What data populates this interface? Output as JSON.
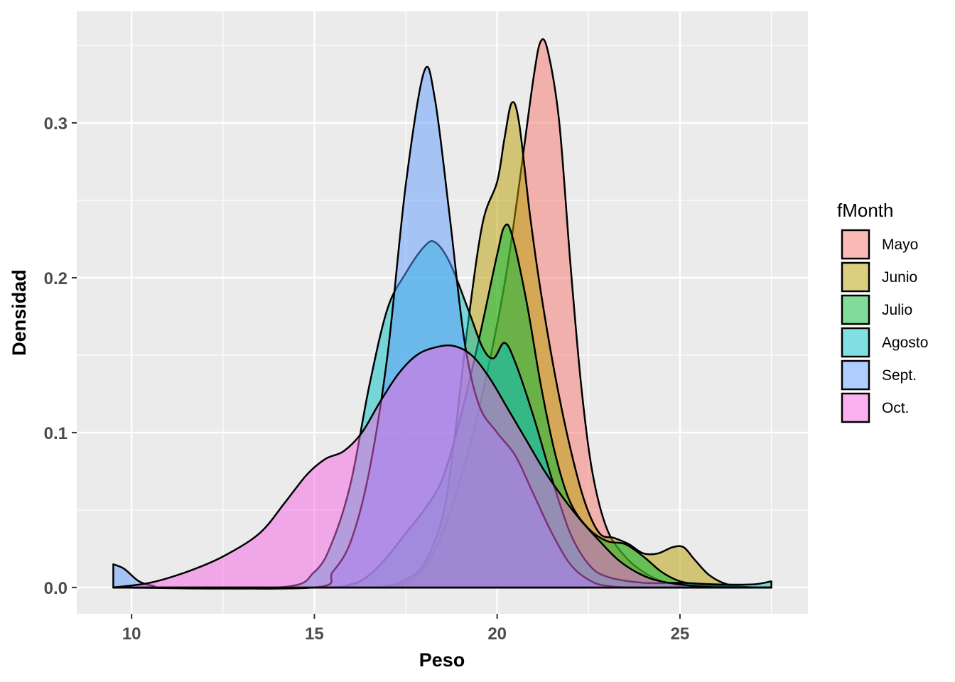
{
  "chart_data": {
    "type": "area",
    "xlabel": "Peso",
    "ylabel": "Densidad",
    "xlim": [
      8.5,
      28.5
    ],
    "ylim": [
      -0.017,
      0.372
    ],
    "x_ticks": [
      10,
      15,
      20,
      25
    ],
    "x_tick_labels": [
      "10",
      "15",
      "20",
      "25"
    ],
    "y_ticks": [
      0.0,
      0.1,
      0.2,
      0.3
    ],
    "y_tick_labels": [
      "0.0",
      "0.1",
      "0.2",
      "0.3"
    ],
    "grid": true,
    "legend": {
      "title": "fMonth",
      "position": "right"
    },
    "fill_opacity": 0.5,
    "series": [
      {
        "name": "Mayo",
        "color": "#F8766D",
        "points": [
          [
            9.5,
            0
          ],
          [
            16,
            0
          ],
          [
            17,
            0.001
          ],
          [
            17.5,
            0.003
          ],
          [
            18,
            0.012
          ],
          [
            18.5,
            0.035
          ],
          [
            19,
            0.07
          ],
          [
            19.5,
            0.115
          ],
          [
            20,
            0.17
          ],
          [
            20.3,
            0.21
          ],
          [
            20.6,
            0.26
          ],
          [
            21,
            0.33
          ],
          [
            21.2,
            0.353
          ],
          [
            21.4,
            0.345
          ],
          [
            21.7,
            0.3
          ],
          [
            22,
            0.21
          ],
          [
            22.3,
            0.13
          ],
          [
            22.6,
            0.075
          ],
          [
            23,
            0.038
          ],
          [
            23.5,
            0.02
          ],
          [
            24,
            0.01
          ],
          [
            24.5,
            0.004
          ],
          [
            25,
            0.001
          ],
          [
            26,
            0
          ],
          [
            27.5,
            0
          ]
        ]
      },
      {
        "name": "Junio",
        "color": "#B79F00",
        "points": [
          [
            9.5,
            0
          ],
          [
            16,
            0
          ],
          [
            17,
            0.001
          ],
          [
            17.5,
            0.005
          ],
          [
            18,
            0.015
          ],
          [
            18.5,
            0.045
          ],
          [
            18.8,
            0.09
          ],
          [
            19.2,
            0.17
          ],
          [
            19.6,
            0.235
          ],
          [
            20,
            0.262
          ],
          [
            20.2,
            0.29
          ],
          [
            20.4,
            0.313
          ],
          [
            20.6,
            0.3
          ],
          [
            20.9,
            0.24
          ],
          [
            21.2,
            0.19
          ],
          [
            21.6,
            0.135
          ],
          [
            22,
            0.09
          ],
          [
            22.4,
            0.055
          ],
          [
            22.8,
            0.035
          ],
          [
            23.2,
            0.032
          ],
          [
            23.6,
            0.028
          ],
          [
            24,
            0.022
          ],
          [
            24.4,
            0.022
          ],
          [
            24.8,
            0.026
          ],
          [
            25.1,
            0.026
          ],
          [
            25.4,
            0.018
          ],
          [
            25.8,
            0.008
          ],
          [
            26.3,
            0.002
          ],
          [
            27,
            0
          ],
          [
            27.5,
            0
          ]
        ]
      },
      {
        "name": "Julio",
        "color": "#00BA38",
        "points": [
          [
            9.5,
            0
          ],
          [
            15,
            0
          ],
          [
            16,
            0.002
          ],
          [
            16.5,
            0.008
          ],
          [
            17,
            0.02
          ],
          [
            17.5,
            0.035
          ],
          [
            18,
            0.05
          ],
          [
            18.5,
            0.07
          ],
          [
            19,
            0.11
          ],
          [
            19.5,
            0.16
          ],
          [
            20,
            0.215
          ],
          [
            20.2,
            0.233
          ],
          [
            20.4,
            0.228
          ],
          [
            20.8,
            0.185
          ],
          [
            21.2,
            0.13
          ],
          [
            21.6,
            0.085
          ],
          [
            22,
            0.055
          ],
          [
            22.5,
            0.038
          ],
          [
            23,
            0.03
          ],
          [
            23.5,
            0.028
          ],
          [
            24,
            0.02
          ],
          [
            24.5,
            0.01
          ],
          [
            25,
            0.004
          ],
          [
            25.5,
            0.002
          ],
          [
            26,
            0.001
          ],
          [
            27,
            0
          ],
          [
            27.5,
            0
          ]
        ]
      },
      {
        "name": "Agosto",
        "color": "#00BFC4",
        "points": [
          [
            9.5,
            0
          ],
          [
            14,
            0
          ],
          [
            15,
            0.01
          ],
          [
            15.5,
            0.03
          ],
          [
            16,
            0.068
          ],
          [
            16.5,
            0.13
          ],
          [
            17,
            0.18
          ],
          [
            17.5,
            0.203
          ],
          [
            18,
            0.22
          ],
          [
            18.3,
            0.223
          ],
          [
            18.7,
            0.21
          ],
          [
            19.2,
            0.18
          ],
          [
            19.6,
            0.155
          ],
          [
            19.9,
            0.148
          ],
          [
            20.2,
            0.158
          ],
          [
            20.5,
            0.145
          ],
          [
            21,
            0.11
          ],
          [
            21.5,
            0.07
          ],
          [
            22,
            0.035
          ],
          [
            22.5,
            0.015
          ],
          [
            23,
            0.007
          ],
          [
            24,
            0.003
          ],
          [
            25,
            0.003
          ],
          [
            26,
            0.002
          ],
          [
            27,
            0.002
          ],
          [
            27.5,
            0.004
          ]
        ]
      },
      {
        "name": "Sept.",
        "color": "#619CFF",
        "points": [
          [
            9.5,
            0.015
          ],
          [
            9.8,
            0.012
          ],
          [
            10.2,
            0.004
          ],
          [
            10.6,
            0.001
          ],
          [
            11,
            0
          ],
          [
            15,
            0
          ],
          [
            15.5,
            0.01
          ],
          [
            16,
            0.03
          ],
          [
            16.5,
            0.075
          ],
          [
            17,
            0.15
          ],
          [
            17.5,
            0.26
          ],
          [
            18,
            0.333
          ],
          [
            18.3,
            0.315
          ],
          [
            18.7,
            0.24
          ],
          [
            19.1,
            0.16
          ],
          [
            19.5,
            0.118
          ],
          [
            20,
            0.1
          ],
          [
            20.5,
            0.085
          ],
          [
            21,
            0.06
          ],
          [
            21.5,
            0.035
          ],
          [
            22,
            0.015
          ],
          [
            22.5,
            0.005
          ],
          [
            23,
            0.001
          ],
          [
            24,
            0
          ],
          [
            27.5,
            0
          ]
        ]
      },
      {
        "name": "Oct.",
        "color": "#F564E3",
        "points": [
          [
            9.5,
            0
          ],
          [
            10.5,
            0.003
          ],
          [
            11.5,
            0.01
          ],
          [
            12.5,
            0.02
          ],
          [
            13.5,
            0.035
          ],
          [
            14.2,
            0.055
          ],
          [
            14.8,
            0.073
          ],
          [
            15.3,
            0.083
          ],
          [
            15.8,
            0.088
          ],
          [
            16.3,
            0.1
          ],
          [
            16.8,
            0.12
          ],
          [
            17.3,
            0.138
          ],
          [
            17.8,
            0.15
          ],
          [
            18.3,
            0.155
          ],
          [
            18.8,
            0.156
          ],
          [
            19.3,
            0.15
          ],
          [
            19.8,
            0.135
          ],
          [
            20.3,
            0.115
          ],
          [
            20.8,
            0.095
          ],
          [
            21.3,
            0.075
          ],
          [
            21.8,
            0.058
          ],
          [
            22.3,
            0.043
          ],
          [
            22.8,
            0.03
          ],
          [
            23.3,
            0.018
          ],
          [
            23.8,
            0.01
          ],
          [
            24.3,
            0.005
          ],
          [
            25,
            0.002
          ],
          [
            26,
            0
          ],
          [
            27.5,
            0
          ]
        ]
      }
    ]
  }
}
